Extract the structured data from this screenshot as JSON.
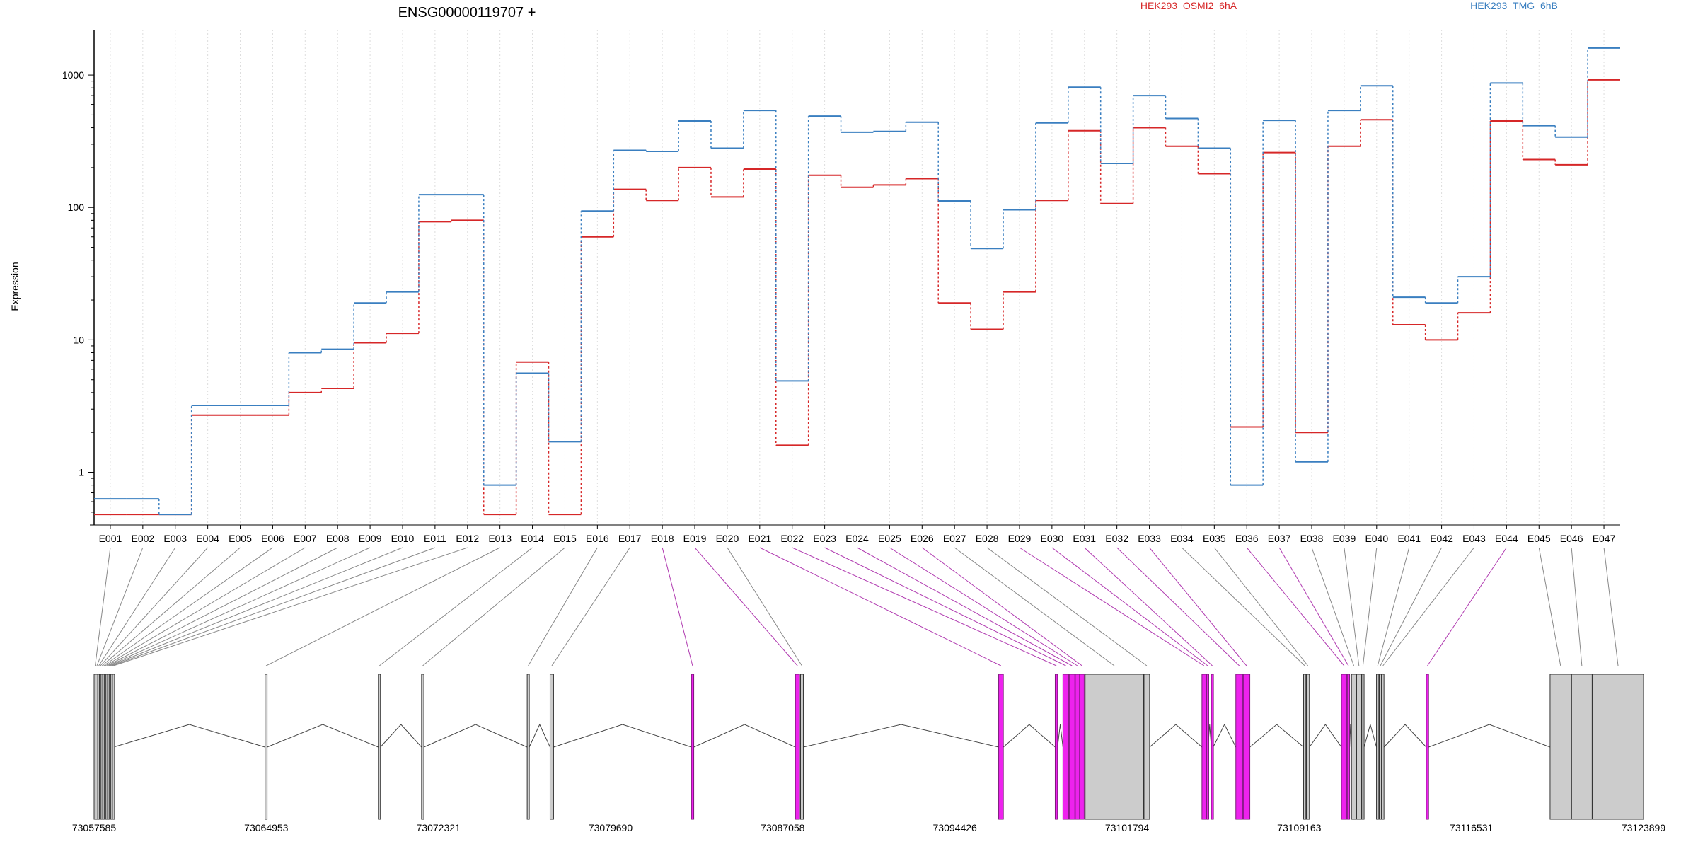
{
  "chart_data": {
    "type": "line",
    "title": "ENSG00000119707 +",
    "ylabel": "Expression",
    "xlabel": "",
    "y_scale": "log",
    "ylim": [
      0.4,
      2200
    ],
    "y_ticks": [
      {
        "value": 1,
        "label": "1"
      },
      {
        "value": 10,
        "label": "10"
      },
      {
        "value": 100,
        "label": "100"
      },
      {
        "value": 1000,
        "label": "1000"
      }
    ],
    "grid": "vertical dotted lines at each exon",
    "colors": {
      "HEK293_OSMI2_6hA": "#d62728",
      "HEK293_TMG_6hB": "#3a7fc0",
      "highlight": "#ee22ee",
      "exon": "#cccccc"
    },
    "categories": [
      "E001",
      "E002",
      "E003",
      "E004",
      "E005",
      "E006",
      "E007",
      "E008",
      "E009",
      "E010",
      "E011",
      "E012",
      "E013",
      "E014",
      "E015",
      "E016",
      "E017",
      "E018",
      "E019",
      "E020",
      "E021",
      "E022",
      "E023",
      "E024",
      "E025",
      "E026",
      "E027",
      "E028",
      "E029",
      "E030",
      "E031",
      "E032",
      "E033",
      "E034",
      "E035",
      "E036",
      "E037",
      "E038",
      "E039",
      "E040",
      "E041",
      "E042",
      "E043",
      "E044",
      "E045",
      "E046",
      "E047"
    ],
    "series": [
      {
        "name": "HEK293_OSMI2_6hA",
        "color": "#d62728",
        "values": [
          0.48,
          0.48,
          0.48,
          2.7,
          2.7,
          2.7,
          4.0,
          4.3,
          9.5,
          11.2,
          78,
          80,
          0.48,
          6.8,
          0.48,
          60,
          137,
          113,
          200,
          120,
          195,
          1.6,
          175,
          142,
          148,
          165,
          19,
          12,
          23,
          113,
          380,
          107,
          400,
          290,
          180,
          2.2,
          260,
          2.0,
          290,
          460,
          13,
          10,
          16,
          450,
          230,
          210,
          920
        ]
      },
      {
        "name": "HEK293_TMG_6hB",
        "color": "#3a7fc0",
        "values": [
          0.63,
          0.63,
          0.48,
          3.2,
          3.2,
          3.2,
          8.0,
          8.5,
          19,
          23,
          125,
          125,
          0.8,
          5.6,
          1.7,
          94,
          270,
          265,
          450,
          280,
          540,
          4.9,
          490,
          370,
          375,
          440,
          112,
          49,
          96,
          435,
          810,
          215,
          700,
          470,
          280,
          0.8,
          455,
          1.2,
          540,
          830,
          21,
          19,
          30,
          870,
          415,
          340,
          1600
        ]
      }
    ],
    "genomic_ticks": [
      "73057585",
      "73064953",
      "73072321",
      "73079690",
      "73087058",
      "73094426",
      "73101794",
      "73109163",
      "73116531",
      "73123899"
    ],
    "exons": [
      {
        "id": "E001",
        "start": 73057585,
        "end": 73057640,
        "hl": false
      },
      {
        "id": "E002",
        "start": 73057660,
        "end": 73057720,
        "hl": false
      },
      {
        "id": "E003",
        "start": 73057740,
        "end": 73057790,
        "hl": false
      },
      {
        "id": "E004",
        "start": 73057810,
        "end": 73057860,
        "hl": false
      },
      {
        "id": "E005",
        "start": 73057880,
        "end": 73057930,
        "hl": false
      },
      {
        "id": "E006",
        "start": 73057950,
        "end": 73058000,
        "hl": false
      },
      {
        "id": "E007",
        "start": 73058020,
        "end": 73058070,
        "hl": false
      },
      {
        "id": "E008",
        "start": 73058090,
        "end": 73058140,
        "hl": false
      },
      {
        "id": "E009",
        "start": 73058160,
        "end": 73058210,
        "hl": false
      },
      {
        "id": "E010",
        "start": 73058230,
        "end": 73058280,
        "hl": false
      },
      {
        "id": "E011",
        "start": 73058300,
        "end": 73058350,
        "hl": false
      },
      {
        "id": "E012",
        "start": 73058370,
        "end": 73058420,
        "hl": false
      },
      {
        "id": "E013",
        "start": 73064900,
        "end": 73064990,
        "hl": false
      },
      {
        "id": "E014",
        "start": 73069750,
        "end": 73069840,
        "hl": false
      },
      {
        "id": "E015",
        "start": 73071600,
        "end": 73071700,
        "hl": false
      },
      {
        "id": "E016",
        "start": 73076120,
        "end": 73076210,
        "hl": false
      },
      {
        "id": "E017",
        "start": 73077100,
        "end": 73077250,
        "hl": false
      },
      {
        "id": "E018",
        "start": 73083150,
        "end": 73083250,
        "hl": true
      },
      {
        "id": "E019",
        "start": 73087600,
        "end": 73087780,
        "hl": true
      },
      {
        "id": "E020",
        "start": 73087820,
        "end": 73087940,
        "hl": false
      },
      {
        "id": "E021",
        "start": 73096300,
        "end": 73096500,
        "hl": true
      },
      {
        "id": "E022",
        "start": 73098720,
        "end": 73098820,
        "hl": true
      },
      {
        "id": "E023",
        "start": 73099050,
        "end": 73099300,
        "hl": true
      },
      {
        "id": "E024",
        "start": 73099320,
        "end": 73099560,
        "hl": true
      },
      {
        "id": "E025",
        "start": 73099580,
        "end": 73099760,
        "hl": true
      },
      {
        "id": "E026",
        "start": 73099780,
        "end": 73099960,
        "hl": true
      },
      {
        "id": "E027",
        "start": 73100000,
        "end": 73102500,
        "hl": false
      },
      {
        "id": "E028",
        "start": 73102520,
        "end": 73102760,
        "hl": false
      },
      {
        "id": "E029",
        "start": 73105000,
        "end": 73105180,
        "hl": true
      },
      {
        "id": "E030",
        "start": 73105200,
        "end": 73105260,
        "hl": true
      },
      {
        "id": "E031",
        "start": 73105400,
        "end": 73105480,
        "hl": true
      },
      {
        "id": "E032",
        "start": 73106450,
        "end": 73106750,
        "hl": true
      },
      {
        "id": "E033",
        "start": 73106770,
        "end": 73107050,
        "hl": true
      },
      {
        "id": "E034",
        "start": 73109350,
        "end": 73109450,
        "hl": false
      },
      {
        "id": "E035",
        "start": 73109470,
        "end": 73109600,
        "hl": false
      },
      {
        "id": "E036",
        "start": 73110970,
        "end": 73111200,
        "hl": true
      },
      {
        "id": "E037",
        "start": 73111220,
        "end": 73111320,
        "hl": true
      },
      {
        "id": "E038",
        "start": 73111400,
        "end": 73111600,
        "hl": false
      },
      {
        "id": "E039",
        "start": 73111620,
        "end": 73111820,
        "hl": false
      },
      {
        "id": "E040",
        "start": 73111840,
        "end": 73111940,
        "hl": false
      },
      {
        "id": "E041",
        "start": 73112470,
        "end": 73112570,
        "hl": false
      },
      {
        "id": "E042",
        "start": 73112590,
        "end": 73112680,
        "hl": false
      },
      {
        "id": "E043",
        "start": 73112700,
        "end": 73112790,
        "hl": false
      },
      {
        "id": "E044",
        "start": 73114600,
        "end": 73114700,
        "hl": true
      },
      {
        "id": "E045",
        "start": 73119900,
        "end": 73120800,
        "hl": false
      },
      {
        "id": "E046",
        "start": 73120820,
        "end": 73121700,
        "hl": false
      },
      {
        "id": "E047",
        "start": 73121720,
        "end": 73123899,
        "hl": false
      }
    ]
  }
}
